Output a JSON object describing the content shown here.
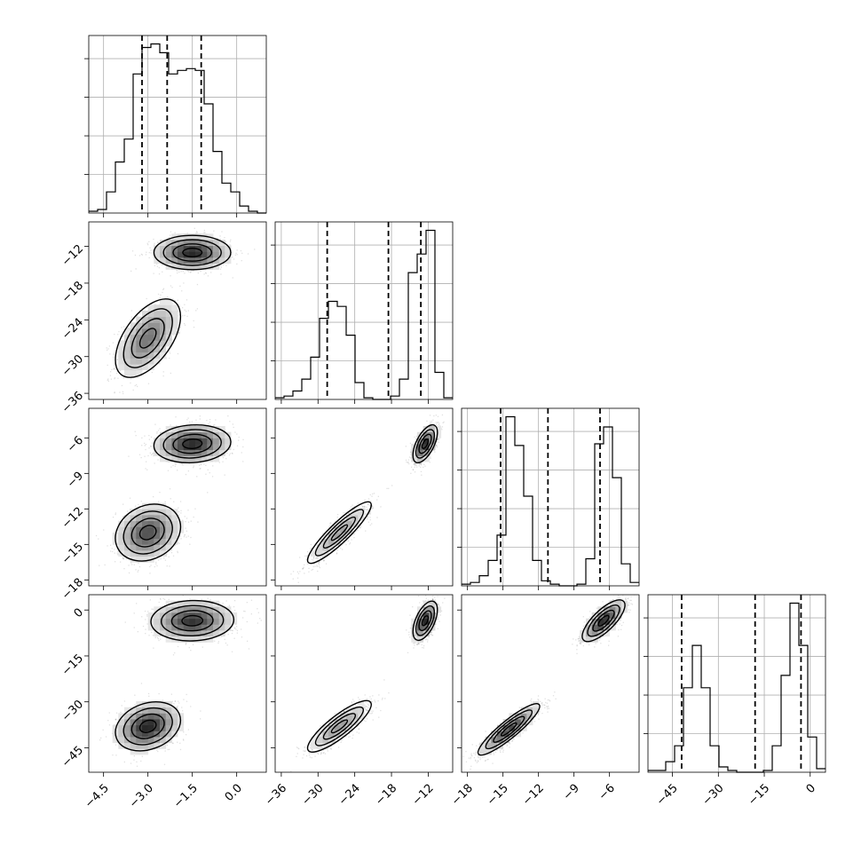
{
  "chart_data": {
    "type": "corner",
    "parameters": [
      {
        "range": [
          -5.0,
          1.0
        ],
        "ticks": [
          -4.5,
          -3.0,
          -1.5,
          0.0
        ],
        "tick_labels": [
          "−4.5",
          "−3.0",
          "−1.5",
          "0.0"
        ],
        "quantiles": [
          -3.2,
          -2.35,
          -1.2
        ],
        "hist_bins": [
          -5.0,
          -4.7,
          -4.4,
          -4.1,
          -3.8,
          -3.5,
          -3.2,
          -2.9,
          -2.6,
          -2.3,
          -2.0,
          -1.7,
          -1.4,
          -1.1,
          -0.8,
          -0.5,
          -0.2,
          0.1,
          0.4,
          0.7,
          1.0
        ],
        "hist_counts": [
          1,
          2,
          12,
          29,
          42,
          79,
          94,
          96,
          91,
          79,
          81,
          82,
          81,
          62,
          35,
          17,
          12,
          4,
          1,
          0
        ]
      },
      {
        "range": [
          -37.0,
          -8.0
        ],
        "ticks": [
          -36,
          -30,
          -24,
          -18,
          -12
        ],
        "tick_labels": [
          "−36",
          "−30",
          "−24",
          "−18",
          "−12"
        ],
        "quantiles": [
          -28.5,
          -18.5,
          -13.2
        ],
        "hist_bins": [
          -37.0,
          -35.55,
          -34.1,
          -32.65,
          -31.2,
          -29.75,
          -28.3,
          -26.85,
          -25.4,
          -23.95,
          -22.5,
          -21.05,
          -19.6,
          -18.15,
          -16.7,
          -15.25,
          -13.8,
          -12.35,
          -10.9,
          -9.45,
          -8.0
        ],
        "hist_counts": [
          1,
          2,
          5,
          12,
          25,
          48,
          58,
          55,
          38,
          10,
          1,
          0,
          0,
          2,
          12,
          75,
          86,
          100,
          16,
          1
        ]
      },
      {
        "range": [
          -18.5,
          -3.5
        ],
        "ticks": [
          -18,
          -15,
          -12,
          -9,
          -6
        ],
        "tick_labels": [
          "−18",
          "−15",
          "−12",
          "−9",
          "−6"
        ],
        "quantiles": [
          -15.2,
          -11.2,
          -6.8
        ],
        "hist_bins": [
          -18.5,
          -17.75,
          -17.0,
          -16.25,
          -15.5,
          -14.75,
          -14.0,
          -13.25,
          -12.5,
          -11.75,
          -11.0,
          -10.25,
          -9.5,
          -8.75,
          -8.0,
          -7.25,
          -6.5,
          -5.75,
          -5.0,
          -4.25,
          -3.5
        ],
        "hist_counts": [
          1,
          2,
          6,
          15,
          30,
          100,
          83,
          53,
          15,
          3,
          1,
          0,
          0,
          1,
          16,
          84,
          94,
          64,
          13,
          2
        ]
      },
      {
        "range": [
          -53.0,
          5.0
        ],
        "ticks": [
          -45,
          -30,
          -15,
          0
        ],
        "tick_labels": [
          "−45",
          "−30",
          "−15",
          "0"
        ],
        "quantiles": [
          -42.0,
          -18.0,
          -3.0
        ],
        "hist_bins": [
          -53.0,
          -50.1,
          -47.2,
          -44.3,
          -41.4,
          -38.5,
          -35.6,
          -32.7,
          -29.8,
          -26.9,
          -24.0,
          -21.1,
          -18.2,
          -15.3,
          -12.4,
          -9.5,
          -6.6,
          -3.7,
          -0.8,
          2.1,
          5.0
        ],
        "hist_counts": [
          1,
          1,
          6,
          15,
          48,
          72,
          48,
          15,
          3,
          1,
          0,
          0,
          0,
          1,
          15,
          55,
          96,
          72,
          20,
          2
        ]
      }
    ],
    "pairs": [
      {
        "x": 0,
        "y": 1,
        "modes": [
          {
            "mx": -3.0,
            "my": -27.0,
            "sx": 0.55,
            "sy": 3.2,
            "rho": 0.55,
            "w": 0.5
          },
          {
            "mx": -1.5,
            "my": -13.0,
            "sx": 0.65,
            "sy": 1.4,
            "rho": 0.0,
            "w": 0.5
          }
        ]
      },
      {
        "x": 0,
        "y": 2,
        "modes": [
          {
            "mx": -3.0,
            "my": -14.0,
            "sx": 0.55,
            "sy": 1.2,
            "rho": 0.2,
            "w": 0.5
          },
          {
            "mx": -1.5,
            "my": -6.5,
            "sx": 0.65,
            "sy": 0.8,
            "rho": 0.1,
            "w": 0.5
          }
        ]
      },
      {
        "x": 1,
        "y": 2,
        "modes": [
          {
            "mx": -26.5,
            "my": -14.0,
            "sx": 2.6,
            "sy": 1.3,
            "rho": 0.9,
            "w": 0.5
          },
          {
            "mx": -12.5,
            "my": -6.5,
            "sx": 1.0,
            "sy": 0.8,
            "rho": 0.6,
            "w": 0.5
          }
        ]
      },
      {
        "x": 0,
        "y": 3,
        "modes": [
          {
            "mx": -3.0,
            "my": -38.0,
            "sx": 0.55,
            "sy": 4.0,
            "rho": 0.25,
            "w": 0.5
          },
          {
            "mx": -1.5,
            "my": -3.5,
            "sx": 0.7,
            "sy": 3.3,
            "rho": 0.05,
            "w": 0.5
          }
        ]
      },
      {
        "x": 1,
        "y": 3,
        "modes": [
          {
            "mx": -26.5,
            "my": -38.0,
            "sx": 2.6,
            "sy": 4.2,
            "rho": 0.85,
            "w": 0.5
          },
          {
            "mx": -12.5,
            "my": -3.5,
            "sx": 1.0,
            "sy": 3.2,
            "rho": 0.55,
            "w": 0.5
          }
        ]
      },
      {
        "x": 2,
        "y": 3,
        "modes": [
          {
            "mx": -14.5,
            "my": -39.0,
            "sx": 1.3,
            "sy": 4.2,
            "rho": 0.9,
            "w": 0.5
          },
          {
            "mx": -6.5,
            "my": -3.5,
            "sx": 0.9,
            "sy": 3.4,
            "rho": 0.75,
            "w": 0.5
          }
        ]
      }
    ]
  }
}
